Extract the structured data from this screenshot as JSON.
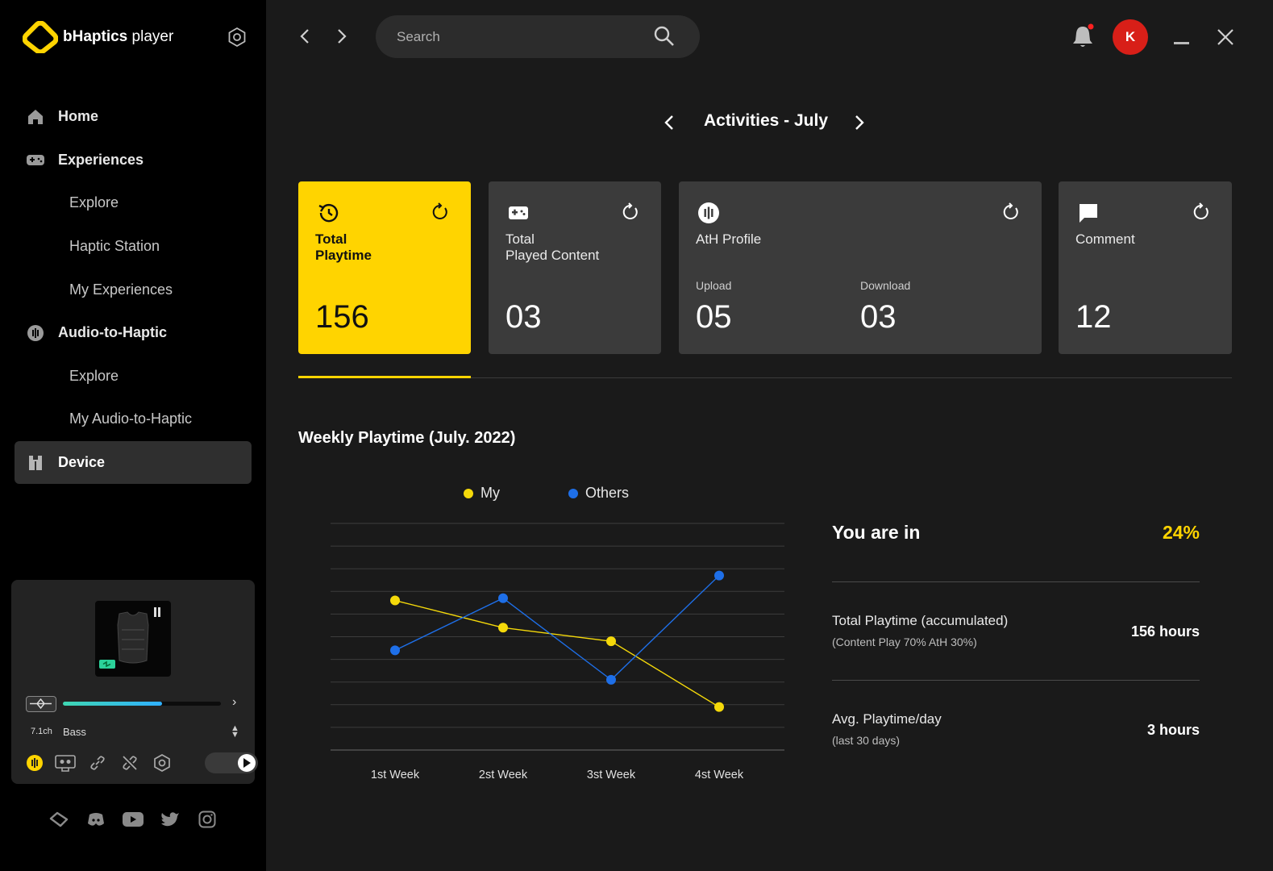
{
  "app": {
    "name_bold": "bHaptics",
    "name_light": " player"
  },
  "sidebar": {
    "items": [
      {
        "label": "Home",
        "icon": "home-icon",
        "level": "main"
      },
      {
        "label": "Experiences",
        "icon": "gamepad-icon",
        "level": "main"
      },
      {
        "label": "Explore",
        "level": "sub"
      },
      {
        "label": "Haptic Station",
        "level": "sub"
      },
      {
        "label": "My Experiences",
        "level": "sub"
      },
      {
        "label": "Audio-to-Haptic",
        "icon": "audio-haptic-icon",
        "level": "main"
      },
      {
        "label": "Explore",
        "level": "sub"
      },
      {
        "label": "My Audio-to-Haptic",
        "level": "sub"
      },
      {
        "label": "Device",
        "icon": "device-icon",
        "level": "main",
        "active": true
      }
    ]
  },
  "device_card": {
    "intensity_level": 0.63,
    "channel_label": "7.1ch",
    "mode": "Bass",
    "toggle_on": true
  },
  "search": {
    "placeholder": "Search"
  },
  "header": {
    "avatar_initial": "K",
    "notification_dot": true
  },
  "activities": {
    "title": "Activities - July"
  },
  "cards": [
    {
      "label": "Total\nPlaytime",
      "value": "156",
      "icon": "history-icon",
      "highlight": true
    },
    {
      "label": "Total\nPlayed Content",
      "value": "03",
      "icon": "gamepad-icon"
    },
    {
      "label": "AtH Profile",
      "icon": "audio-haptic-icon",
      "upload_label": "Upload",
      "upload_value": "05",
      "download_label": "Download",
      "download_value": "03"
    },
    {
      "label": "Comment",
      "value": "12",
      "icon": "comment-icon"
    }
  ],
  "chart_title": "Weekly Playtime (July. 2022)",
  "chart_data": {
    "type": "line",
    "categories": [
      "1st Week",
      "2st Week",
      "3st Week",
      "4st Week"
    ],
    "series": [
      {
        "name": "My",
        "color": "#f5d90a",
        "values": [
          6.6,
          5.4,
          4.8,
          1.9
        ]
      },
      {
        "name": "Others",
        "color": "#1e6fe8",
        "values": [
          4.4,
          6.7,
          3.1,
          7.7
        ]
      }
    ],
    "ylim": [
      0,
      10
    ],
    "grid": true,
    "legend_position": "top"
  },
  "stats": {
    "rank_label": "You are in",
    "rank_value": "24%",
    "total_label": "Total Playtime (accumulated)",
    "total_sub": "(Content Play  70% AtH 30%)",
    "total_value": "156 hours",
    "avg_label": "Avg. Playtime/day",
    "avg_sub": "(last 30 days)",
    "avg_value": "3 hours"
  },
  "colors": {
    "accent": "#ffd400",
    "series_my": "#f5d90a",
    "series_others": "#1e6fe8",
    "avatar": "#d81f18"
  }
}
